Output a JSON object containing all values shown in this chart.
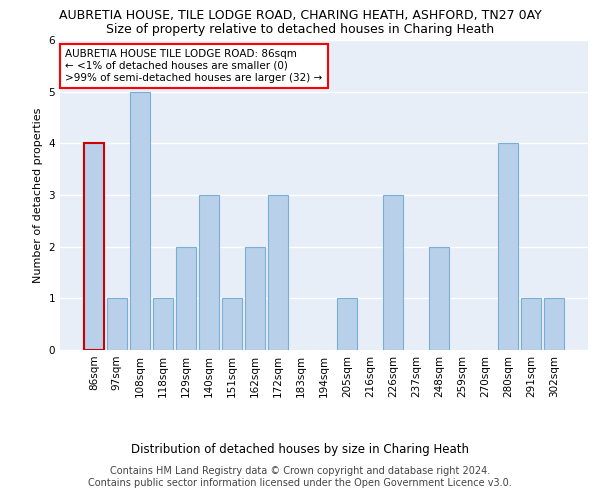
{
  "title": "AUBRETIA HOUSE, TILE LODGE ROAD, CHARING HEATH, ASHFORD, TN27 0AY",
  "subtitle": "Size of property relative to detached houses in Charing Heath",
  "xlabel": "Distribution of detached houses by size in Charing Heath",
  "ylabel": "Number of detached properties",
  "categories": [
    "86sqm",
    "97sqm",
    "108sqm",
    "118sqm",
    "129sqm",
    "140sqm",
    "151sqm",
    "162sqm",
    "172sqm",
    "183sqm",
    "194sqm",
    "205sqm",
    "216sqm",
    "226sqm",
    "237sqm",
    "248sqm",
    "259sqm",
    "270sqm",
    "280sqm",
    "291sqm",
    "302sqm"
  ],
  "values": [
    4,
    1,
    5,
    1,
    2,
    3,
    1,
    2,
    3,
    0,
    0,
    1,
    0,
    3,
    0,
    2,
    0,
    0,
    4,
    1,
    1
  ],
  "highlight_index": 0,
  "bar_color": "#b8d0ea",
  "bar_edge_color": "#7aafd4",
  "highlight_bar_edge_color": "#cc0000",
  "background_color": "#e8eef8",
  "ylim": [
    0,
    6
  ],
  "yticks": [
    0,
    1,
    2,
    3,
    4,
    5,
    6
  ],
  "annotation_title": "AUBRETIA HOUSE TILE LODGE ROAD: 86sqm",
  "annotation_line1": "← <1% of detached houses are smaller (0)",
  "annotation_line2": ">99% of semi-detached houses are larger (32) →",
  "footer_line1": "Contains HM Land Registry data © Crown copyright and database right 2024.",
  "footer_line2": "Contains public sector information licensed under the Open Government Licence v3.0.",
  "title_fontsize": 9,
  "subtitle_fontsize": 9,
  "xlabel_fontsize": 8.5,
  "ylabel_fontsize": 8,
  "tick_fontsize": 7.5,
  "annotation_fontsize": 7.5,
  "footer_fontsize": 7
}
